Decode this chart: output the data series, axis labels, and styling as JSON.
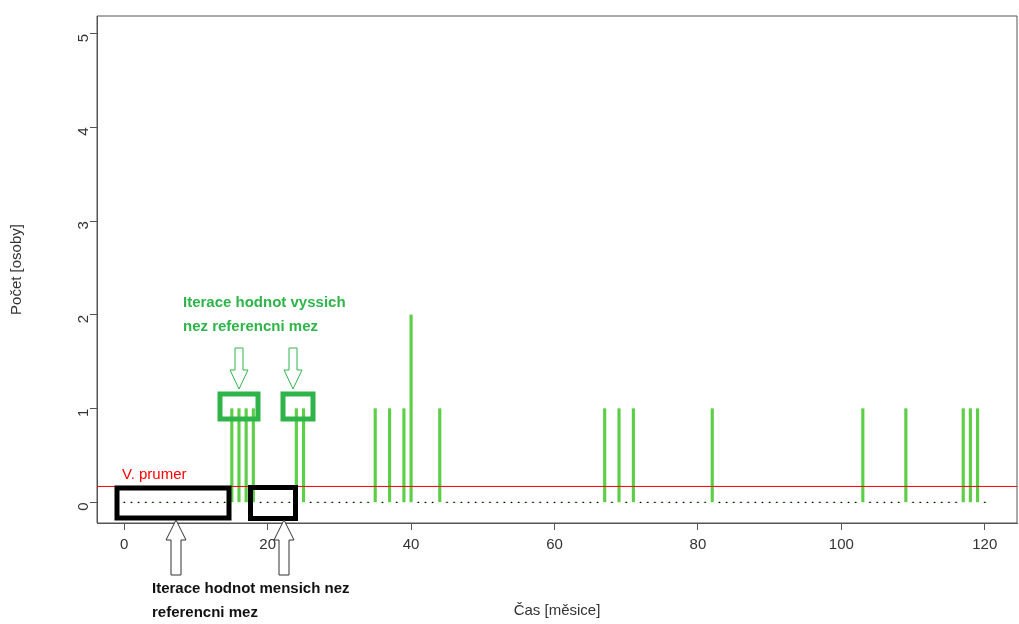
{
  "chart_data": {
    "type": "bar",
    "xlabel": "Čas [měsice]",
    "ylabel": "Počet [osoby]",
    "x": [
      0,
      1,
      2,
      3,
      4,
      5,
      6,
      7,
      8,
      9,
      10,
      11,
      12,
      13,
      14,
      15,
      16,
      17,
      18,
      19,
      20,
      21,
      22,
      23,
      24,
      25,
      26,
      27,
      28,
      29,
      30,
      31,
      32,
      33,
      34,
      35,
      36,
      37,
      38,
      39,
      40,
      41,
      42,
      43,
      44,
      45,
      46,
      47,
      48,
      49,
      50,
      51,
      52,
      53,
      54,
      55,
      56,
      57,
      58,
      59,
      60,
      61,
      62,
      63,
      64,
      65,
      66,
      67,
      68,
      69,
      70,
      71,
      72,
      73,
      74,
      75,
      76,
      77,
      78,
      79,
      80,
      81,
      82,
      83,
      84,
      85,
      86,
      87,
      88,
      89,
      90,
      91,
      92,
      93,
      94,
      95,
      96,
      97,
      98,
      99,
      100,
      101,
      102,
      103,
      104,
      105,
      106,
      107,
      108,
      109,
      110,
      111,
      112,
      113,
      114,
      115,
      116,
      117,
      118,
      119,
      120
    ],
    "series": [
      {
        "color": "#5ccf46",
        "values": [
          0,
          0,
          0,
          0,
          0,
          0,
          0,
          0,
          0,
          0,
          0,
          0,
          0,
          0,
          0,
          1,
          1,
          1,
          1,
          0,
          0,
          0,
          0,
          0,
          1,
          1,
          0,
          0,
          0,
          0,
          0,
          0,
          0,
          0,
          0,
          1,
          0,
          1,
          0,
          1,
          2,
          0,
          0,
          0,
          1,
          0,
          0,
          0,
          0,
          0,
          0,
          0,
          0,
          0,
          0,
          0,
          0,
          0,
          0,
          0,
          0,
          0,
          0,
          0,
          0,
          0,
          0,
          1,
          0,
          1,
          0,
          1,
          0,
          0,
          0,
          0,
          0,
          0,
          0,
          0,
          0,
          0,
          1,
          0,
          0,
          0,
          0,
          0,
          0,
          0,
          0,
          0,
          0,
          0,
          0,
          0,
          0,
          0,
          0,
          0,
          0,
          0,
          0,
          1,
          0,
          0,
          0,
          0,
          0,
          1,
          0,
          0,
          0,
          0,
          0,
          0,
          0,
          1,
          1,
          1,
          0
        ]
      }
    ],
    "xlim": [
      -3.8,
      124.5
    ],
    "xticks": [
      0,
      20,
      40,
      60,
      80,
      100,
      120
    ],
    "ylim": [
      -0.22,
      5.19
    ],
    "yticks": [
      0,
      1,
      2,
      3,
      4,
      5
    ],
    "ref_lines": [
      {
        "axis": "y",
        "value": 0.17,
        "label": "V. prumer",
        "color": "#ff0000"
      }
    ],
    "annotations": [
      "Iterace hodnot vyssich nez referencni mez",
      "Iterace hodnot mensich nez referencni mez"
    ],
    "grid": false,
    "legend": false
  }
}
